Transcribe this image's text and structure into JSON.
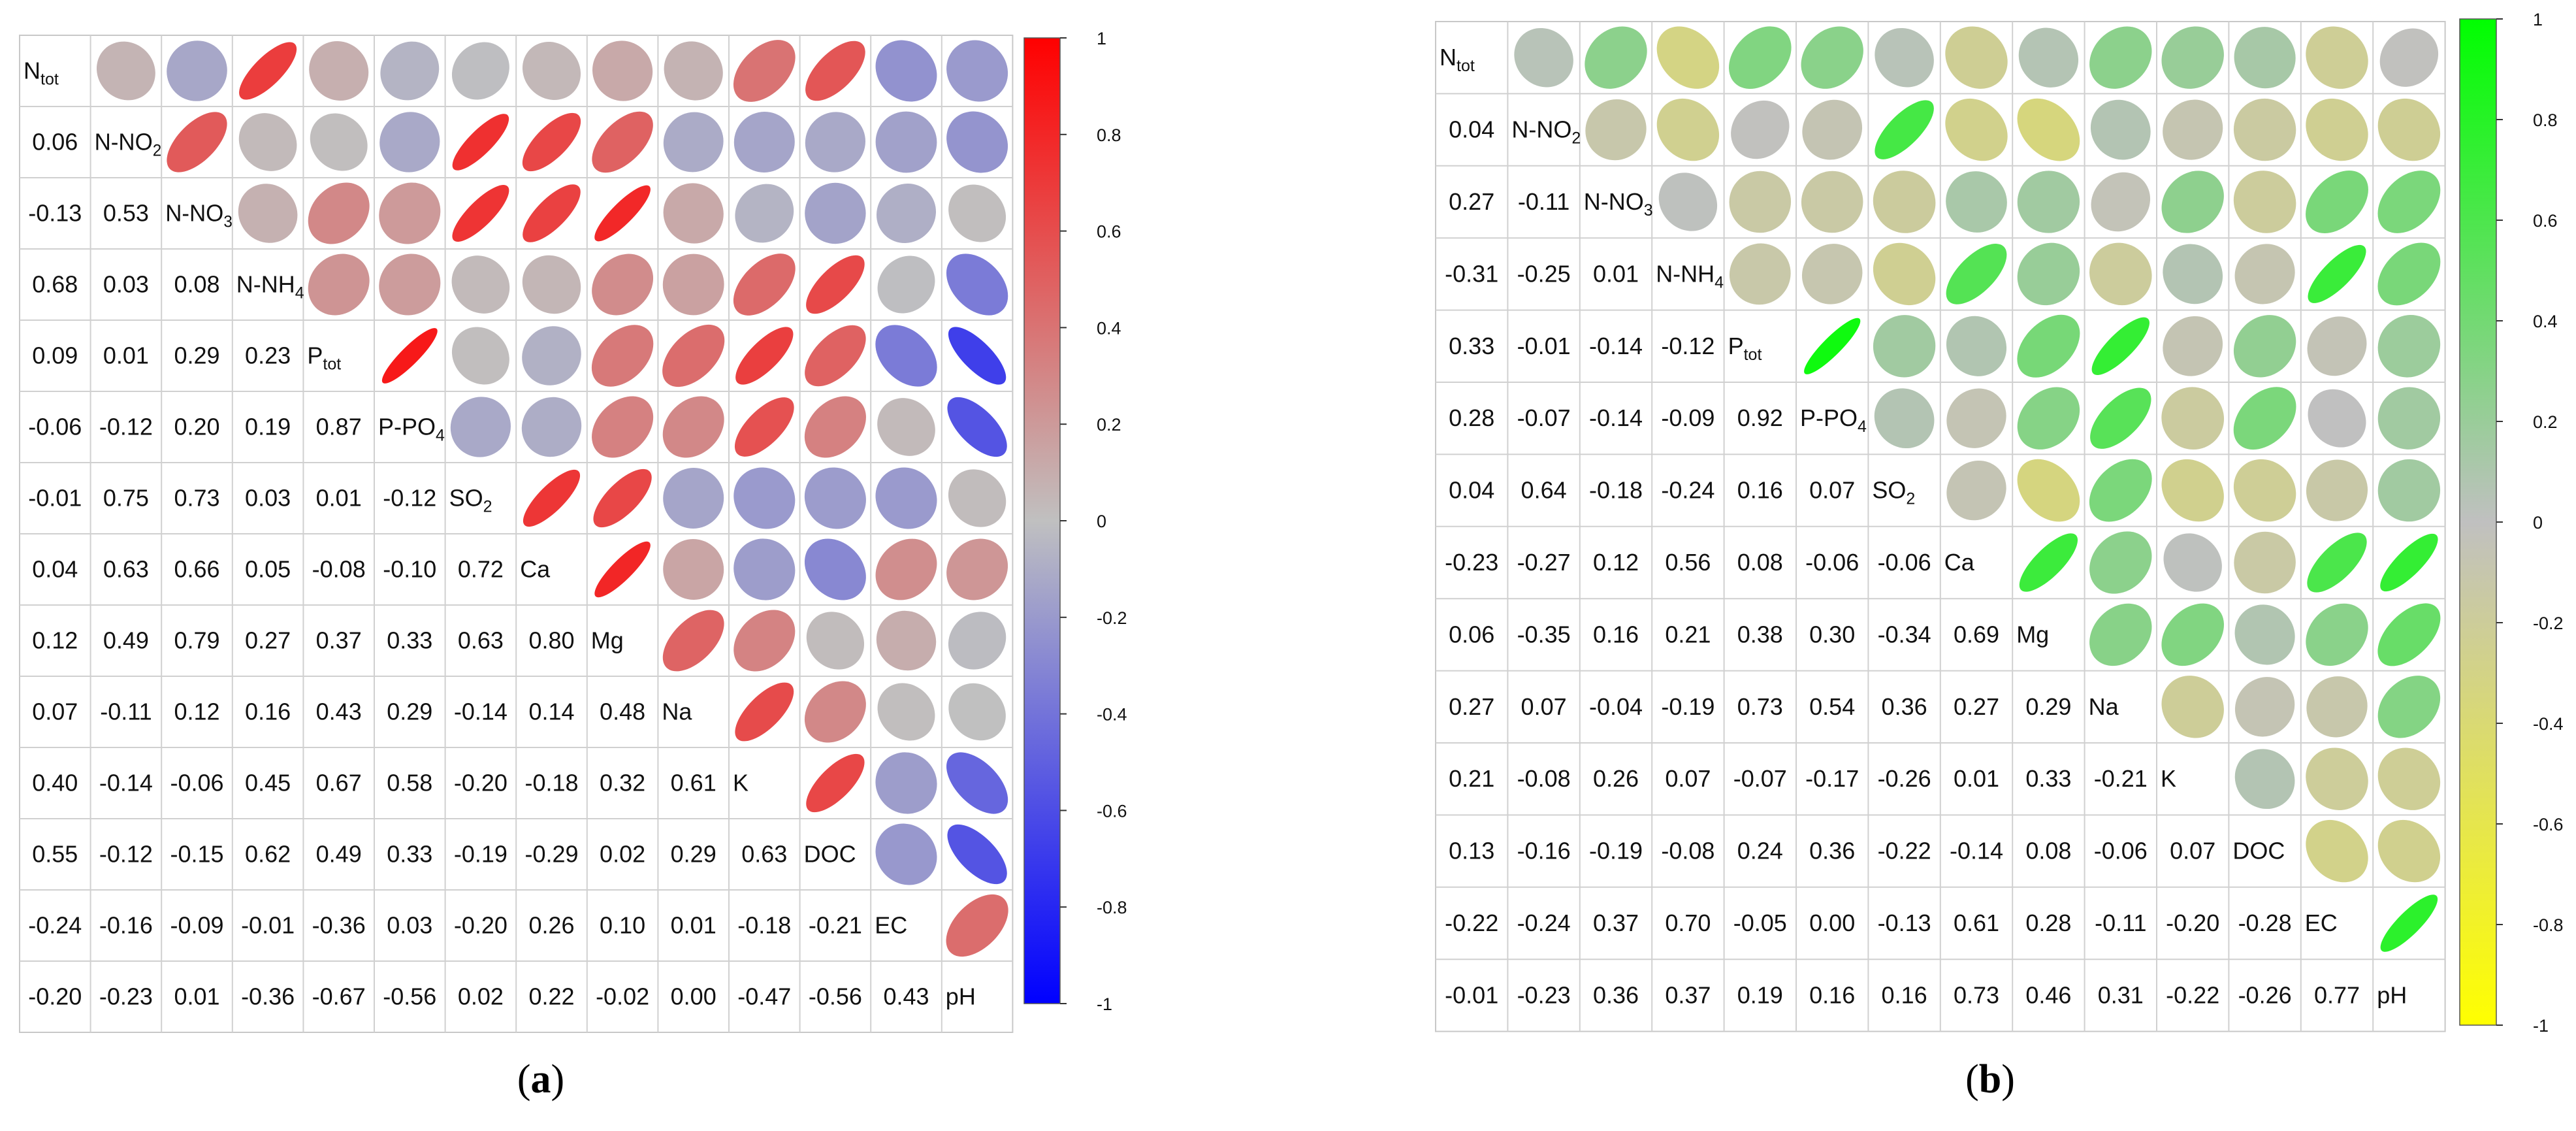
{
  "chart_data": [
    {
      "type": "heatmap",
      "panel_label": "a",
      "variables": [
        [
          "N",
          "tot"
        ],
        [
          "N-NO",
          "2"
        ],
        [
          "N-NO",
          "3"
        ],
        [
          "N-NH",
          "4"
        ],
        [
          "P",
          "tot"
        ],
        [
          "P-PO",
          "4"
        ],
        [
          "SO",
          "2"
        ],
        [
          "Ca",
          ""
        ],
        [
          "Mg",
          ""
        ],
        [
          "Na",
          ""
        ],
        [
          "K",
          ""
        ],
        [
          "DOC",
          ""
        ],
        [
          "EC",
          ""
        ],
        [
          "pH",
          ""
        ]
      ],
      "lower_values": [
        [],
        [
          "0.06"
        ],
        [
          "-0.13",
          "0.53"
        ],
        [
          "0.68",
          "0.03",
          "0.08"
        ],
        [
          "0.09",
          "0.01",
          "0.29",
          "0.23"
        ],
        [
          "-0.06",
          "-0.12",
          "0.20",
          "0.19",
          "0.87"
        ],
        [
          "-0.01",
          "0.75",
          "0.73",
          "0.03",
          "0.01",
          "-0.12"
        ],
        [
          "0.04",
          "0.63",
          "0.66",
          "0.05",
          "-0.08",
          "-0.10",
          "0.72"
        ],
        [
          "0.12",
          "0.49",
          "0.79",
          "0.27",
          "0.37",
          "0.33",
          "0.63",
          "0.80"
        ],
        [
          "0.07",
          "-0.11",
          "0.12",
          "0.16",
          "0.43",
          "0.29",
          "-0.14",
          "0.14",
          "0.48"
        ],
        [
          "0.40",
          "-0.14",
          "-0.06",
          "0.45",
          "0.67",
          "0.58",
          "-0.20",
          "-0.18",
          "0.32",
          "0.61"
        ],
        [
          "0.55",
          "-0.12",
          "-0.15",
          "0.62",
          "0.49",
          "0.33",
          "-0.19",
          "-0.29",
          "0.02",
          "0.29",
          "0.63"
        ],
        [
          "-0.24",
          "-0.16",
          "-0.09",
          "-0.01",
          "-0.36",
          "0.03",
          "-0.20",
          "0.26",
          "0.10",
          "0.01",
          "-0.18",
          "-0.21"
        ],
        [
          "-0.20",
          "-0.23",
          "0.01",
          "-0.36",
          "-0.67",
          "-0.56",
          "0.02",
          "0.22",
          "-0.02",
          "0.00",
          "-0.47",
          "-0.56",
          "0.43"
        ]
      ],
      "colorbar": {
        "ticks": [
          "1",
          "0.8",
          "0.6",
          "0.4",
          "0.2",
          "0",
          "-0.2",
          "-0.4",
          "-0.6",
          "-0.8",
          "-1"
        ],
        "range": [
          -1,
          1
        ],
        "color_positive": "#ff0000",
        "color_zero": "#c0c0c0",
        "color_negative": "#0000ff"
      }
    },
    {
      "type": "heatmap",
      "panel_label": "b",
      "variables": [
        [
          "N",
          "tot"
        ],
        [
          "N-NO",
          "2"
        ],
        [
          "N-NO",
          "3"
        ],
        [
          "N-NH",
          "4"
        ],
        [
          "P",
          "tot"
        ],
        [
          "P-PO",
          "4"
        ],
        [
          "SO",
          "2"
        ],
        [
          "Ca",
          ""
        ],
        [
          "Mg",
          ""
        ],
        [
          "Na",
          ""
        ],
        [
          "K",
          ""
        ],
        [
          "DOC",
          ""
        ],
        [
          "EC",
          ""
        ],
        [
          "pH",
          ""
        ]
      ],
      "lower_values": [
        [],
        [
          "0.04"
        ],
        [
          "0.27",
          "-0.11"
        ],
        [
          "-0.31",
          "-0.25",
          "0.01"
        ],
        [
          "0.33",
          "-0.01",
          "-0.14",
          "-0.12"
        ],
        [
          "0.28",
          "-0.07",
          "-0.14",
          "-0.09",
          "0.92"
        ],
        [
          "0.04",
          "0.64",
          "-0.18",
          "-0.24",
          "0.16",
          "0.07"
        ],
        [
          "-0.23",
          "-0.27",
          "0.12",
          "0.56",
          "0.08",
          "-0.06",
          "-0.06"
        ],
        [
          "0.06",
          "-0.35",
          "0.16",
          "0.21",
          "0.38",
          "0.30",
          "-0.34",
          "0.69"
        ],
        [
          "0.27",
          "0.07",
          "-0.04",
          "-0.19",
          "0.73",
          "0.54",
          "0.36",
          "0.27",
          "0.29"
        ],
        [
          "0.21",
          "-0.08",
          "0.26",
          "0.07",
          "-0.07",
          "-0.17",
          "-0.26",
          "0.01",
          "0.33",
          "-0.21"
        ],
        [
          "0.13",
          "-0.16",
          "-0.19",
          "-0.08",
          "0.24",
          "0.36",
          "-0.22",
          "-0.14",
          "0.08",
          "-0.06",
          "0.07"
        ],
        [
          "-0.22",
          "-0.24",
          "0.37",
          "0.70",
          "-0.05",
          "0.00",
          "-0.13",
          "0.61",
          "0.28",
          "-0.11",
          "-0.20",
          "-0.28"
        ],
        [
          "-0.01",
          "-0.23",
          "0.36",
          "0.37",
          "0.19",
          "0.16",
          "0.16",
          "0.73",
          "0.46",
          "0.31",
          "-0.22",
          "-0.26",
          "0.77"
        ]
      ],
      "colorbar": {
        "ticks": [
          "1",
          "0.8",
          "0.6",
          "0.4",
          "0.2",
          "0",
          "-0.2",
          "-0.4",
          "-0.6",
          "-0.8",
          "-1"
        ],
        "range": [
          -1,
          1
        ],
        "color_positive": "#00ff00",
        "color_zero": "#c0c0c0",
        "color_negative": "#ffff00"
      }
    }
  ]
}
